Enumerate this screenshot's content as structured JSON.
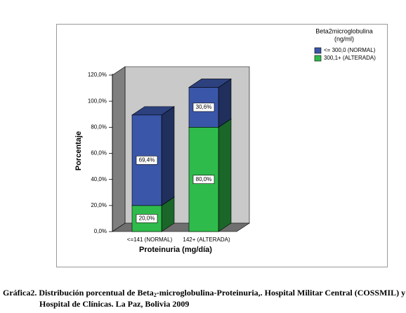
{
  "chart_data": {
    "type": "bar3d_stacked",
    "categories": [
      "<=141 (NORMAL)",
      "142+ (ALTERADA)"
    ],
    "series": [
      {
        "name": "<= 300,0 (NORMAL)",
        "color": "#3a56a8",
        "values": [
          69.4,
          30.6
        ],
        "value_labels": [
          "69,4%",
          "30,6%"
        ]
      },
      {
        "name": "300,1+ (ALTERADA)",
        "color": "#2fbb4b",
        "values": [
          20.0,
          80.0
        ],
        "value_labels": [
          "20,0%",
          "80,0%"
        ]
      }
    ],
    "ylim": [
      0,
      120
    ],
    "yticks": [
      {
        "value": 0,
        "label": "0,0%"
      },
      {
        "value": 20,
        "label": "20,0%"
      },
      {
        "value": 40,
        "label": "40,0%"
      },
      {
        "value": 60,
        "label": "60,0%"
      },
      {
        "value": 80,
        "label": "80,0%"
      },
      {
        "value": 100,
        "label": "100,0%"
      },
      {
        "value": 120,
        "label": "120,0%"
      }
    ],
    "ylabel": "Porcentaje",
    "xlabel": "Proteinuria (mg/día)",
    "legend_title": [
      "Beta2microglobulina",
      "(ng/ml)"
    ],
    "caption": {
      "line1_start": "Gráfica2. Distribución porcentual de Beta",
      "line1_sub": "2",
      "line1_end": "-microglobulina-Proteinuria,. Hospital Militar Central (COSSMIL) y",
      "line2": "Hospital de Clínicas. La Paz, Bolivia 2009"
    }
  }
}
